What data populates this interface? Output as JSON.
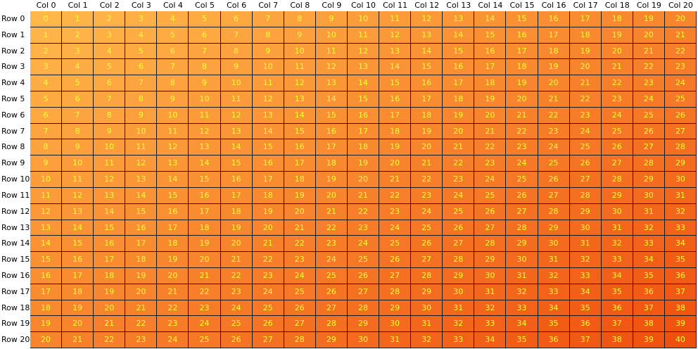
{
  "grid": {
    "column_headers": [
      "Col 0",
      "Col 1",
      "Col 2",
      "Col 3",
      "Col 4",
      "Col 5",
      "Col 6",
      "Col 7",
      "Col 8",
      "Col 9",
      "Col 10",
      "Col 11",
      "Col 12",
      "Col 13",
      "Col 14",
      "Col 15",
      "Col 16",
      "Col 17",
      "Col 18",
      "Col 19",
      "Col 20"
    ],
    "row_headers": [
      "Row 0",
      "Row 1",
      "Row 2",
      "Row 3",
      "Row 4",
      "Row 5",
      "Row 6",
      "Row 7",
      "Row 8",
      "Row 9",
      "Row 10",
      "Row 11",
      "Row 12",
      "Row 13",
      "Row 14",
      "Row 15",
      "Row 16",
      "Row 17",
      "Row 18",
      "Row 19",
      "Row 20"
    ],
    "cells": [
      [
        "0",
        "1",
        "2",
        "3",
        "4",
        "5",
        "6",
        "7",
        "8",
        "9",
        "10",
        "11",
        "12",
        "13",
        "14",
        "15",
        "16",
        "17",
        "18",
        "19",
        "20"
      ],
      [
        "1",
        "2",
        "3",
        "4",
        "5",
        "6",
        "7",
        "8",
        "9",
        "10",
        "11",
        "12",
        "13",
        "14",
        "15",
        "16",
        "17",
        "18",
        "19",
        "20",
        "21"
      ],
      [
        "2",
        "3",
        "4",
        "5",
        "6",
        "7",
        "8",
        "9",
        "10",
        "11",
        "12",
        "13",
        "14",
        "15",
        "16",
        "17",
        "18",
        "19",
        "20",
        "21",
        "22"
      ],
      [
        "3",
        "4",
        "5",
        "6",
        "7",
        "8",
        "9",
        "10",
        "11",
        "12",
        "13",
        "14",
        "15",
        "16",
        "17",
        "18",
        "19",
        "20",
        "21",
        "22",
        "23"
      ],
      [
        "4",
        "5",
        "6",
        "7",
        "8",
        "9",
        "10",
        "11",
        "12",
        "13",
        "14",
        "15",
        "16",
        "17",
        "18",
        "19",
        "20",
        "21",
        "22",
        "23",
        "24"
      ],
      [
        "5",
        "6",
        "7",
        "8",
        "9",
        "10",
        "11",
        "12",
        "13",
        "14",
        "15",
        "16",
        "17",
        "18",
        "19",
        "20",
        "21",
        "22",
        "23",
        "24",
        "25"
      ],
      [
        "6",
        "7",
        "8",
        "9",
        "10",
        "11",
        "12",
        "13",
        "14",
        "15",
        "16",
        "17",
        "18",
        "19",
        "20",
        "21",
        "22",
        "23",
        "24",
        "25",
        "26"
      ],
      [
        "7",
        "8",
        "9",
        "10",
        "11",
        "12",
        "13",
        "14",
        "15",
        "16",
        "17",
        "18",
        "19",
        "20",
        "21",
        "22",
        "23",
        "24",
        "25",
        "26",
        "27"
      ],
      [
        "8",
        "9",
        "10",
        "11",
        "12",
        "13",
        "14",
        "15",
        "16",
        "17",
        "18",
        "19",
        "20",
        "21",
        "22",
        "23",
        "24",
        "25",
        "26",
        "27",
        "28"
      ],
      [
        "9",
        "10",
        "11",
        "12",
        "13",
        "14",
        "15",
        "16",
        "17",
        "18",
        "19",
        "20",
        "21",
        "22",
        "23",
        "24",
        "25",
        "26",
        "27",
        "28",
        "29"
      ],
      [
        "10",
        "11",
        "12",
        "13",
        "14",
        "15",
        "16",
        "17",
        "18",
        "19",
        "20",
        "21",
        "22",
        "23",
        "24",
        "25",
        "26",
        "27",
        "28",
        "29",
        "30"
      ],
      [
        "11",
        "12",
        "13",
        "14",
        "15",
        "16",
        "17",
        "18",
        "19",
        "20",
        "21",
        "22",
        "23",
        "24",
        "25",
        "26",
        "27",
        "28",
        "29",
        "30",
        "31"
      ],
      [
        "12",
        "13",
        "14",
        "15",
        "16",
        "17",
        "18",
        "19",
        "20",
        "21",
        "22",
        "23",
        "24",
        "25",
        "26",
        "27",
        "28",
        "29",
        "30",
        "31",
        "32"
      ],
      [
        "13",
        "14",
        "15",
        "16",
        "17",
        "18",
        "19",
        "20",
        "21",
        "22",
        "23",
        "24",
        "25",
        "26",
        "27",
        "28",
        "29",
        "30",
        "31",
        "32",
        "33"
      ],
      [
        "14",
        "15",
        "16",
        "17",
        "18",
        "19",
        "20",
        "21",
        "22",
        "23",
        "24",
        "25",
        "26",
        "27",
        "28",
        "29",
        "30",
        "31",
        "32",
        "33",
        "34"
      ],
      [
        "15",
        "16",
        "17",
        "18",
        "19",
        "20",
        "21",
        "22",
        "23",
        "24",
        "25",
        "26",
        "27",
        "28",
        "29",
        "30",
        "31",
        "32",
        "33",
        "34",
        "35"
      ],
      [
        "16",
        "17",
        "18",
        "19",
        "20",
        "21",
        "22",
        "23",
        "24",
        "25",
        "26",
        "27",
        "28",
        "29",
        "30",
        "31",
        "32",
        "33",
        "34",
        "35",
        "36"
      ],
      [
        "17",
        "18",
        "19",
        "20",
        "21",
        "22",
        "23",
        "24",
        "25",
        "26",
        "27",
        "28",
        "29",
        "30",
        "31",
        "32",
        "33",
        "34",
        "35",
        "36",
        "37"
      ],
      [
        "18",
        "19",
        "20",
        "21",
        "22",
        "23",
        "24",
        "25",
        "26",
        "27",
        "28",
        "29",
        "30",
        "31",
        "32",
        "33",
        "34",
        "35",
        "36",
        "37",
        "38"
      ],
      [
        "19",
        "20",
        "21",
        "22",
        "23",
        "24",
        "25",
        "26",
        "27",
        "28",
        "29",
        "30",
        "31",
        "32",
        "33",
        "34",
        "35",
        "36",
        "37",
        "38",
        "39"
      ],
      [
        "20",
        "21",
        "22",
        "23",
        "24",
        "25",
        "26",
        "27",
        "28",
        "29",
        "30",
        "31",
        "32",
        "33",
        "34",
        "35",
        "36",
        "37",
        "38",
        "39",
        "40"
      ]
    ],
    "colors": {
      "cell_text": "#ffff33",
      "grid_line": "#1a1a1a",
      "gradient_start": "#ffb74a",
      "gradient_end": "#f0500f"
    }
  }
}
